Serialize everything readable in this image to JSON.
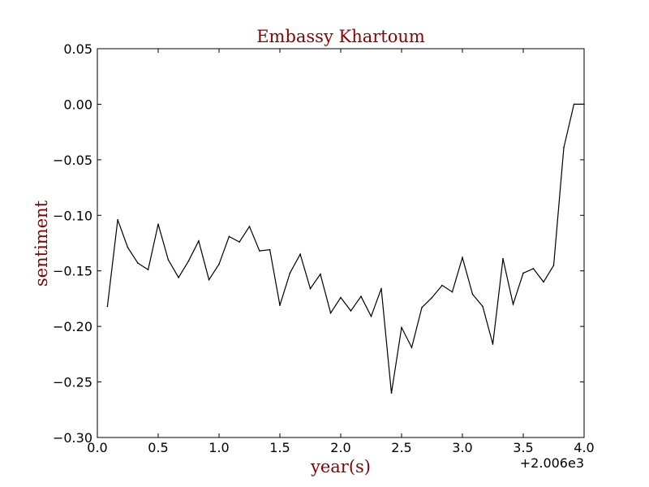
{
  "chart_data": {
    "type": "line",
    "title": "Embassy Khartoum",
    "xlabel": "year(s)",
    "ylabel": "sentiment",
    "x_offset_label": "+2.006e3",
    "xlim": [
      0.0,
      4.0
    ],
    "ylim": [
      -0.3,
      0.05
    ],
    "x_ticks": [
      0.0,
      0.5,
      1.0,
      1.5,
      2.0,
      2.5,
      3.0,
      3.5,
      4.0
    ],
    "x_tick_labels": [
      "0.0",
      "0.5",
      "1.0",
      "1.5",
      "2.0",
      "2.5",
      "3.0",
      "3.5",
      "4.0"
    ],
    "y_ticks": [
      0.05,
      0.0,
      -0.05,
      -0.1,
      -0.15,
      -0.2,
      -0.25,
      -0.3
    ],
    "y_tick_labels": [
      "0.05",
      "0.00",
      "−0.05",
      "−0.10",
      "−0.15",
      "−0.20",
      "−0.25",
      "−0.30"
    ],
    "grid": false,
    "colors": {
      "line": "#000000",
      "title": "#8b0000",
      "axis_label": "#8b0000"
    },
    "series": [
      {
        "x": [
          0.083,
          0.167,
          0.25,
          0.333,
          0.417,
          0.5,
          0.583,
          0.667,
          0.75,
          0.833,
          0.917,
          1.0,
          1.083,
          1.167,
          1.25,
          1.333,
          1.417,
          1.5,
          1.583,
          1.667,
          1.75,
          1.833,
          1.917,
          2.0,
          2.083,
          2.167,
          2.25,
          2.333,
          2.417,
          2.5,
          2.583,
          2.667,
          2.75,
          2.833,
          2.917,
          3.0,
          3.083,
          3.167,
          3.25,
          3.333,
          3.417,
          3.5,
          3.583,
          3.667,
          3.75,
          3.833,
          3.917,
          4.0
        ],
        "y": [
          -0.182,
          -0.104,
          -0.129,
          -0.143,
          -0.149,
          -0.108,
          -0.14,
          -0.156,
          -0.141,
          -0.123,
          -0.158,
          -0.144,
          -0.119,
          -0.124,
          -0.11,
          -0.132,
          -0.131,
          -0.181,
          -0.152,
          -0.135,
          -0.166,
          -0.153,
          -0.188,
          -0.174,
          -0.186,
          -0.173,
          -0.191,
          -0.166,
          -0.26,
          -0.201,
          -0.219,
          -0.183,
          -0.174,
          -0.163,
          -0.169,
          -0.138,
          -0.171,
          -0.182,
          -0.216,
          -0.139,
          -0.18,
          -0.152,
          -0.148,
          -0.16,
          -0.145,
          -0.039,
          0.0,
          0.0
        ]
      }
    ]
  }
}
